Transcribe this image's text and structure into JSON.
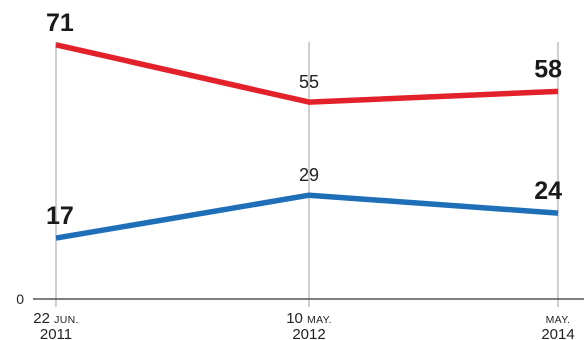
{
  "chart_data": {
    "type": "line",
    "categories": [
      {
        "day": "22",
        "month": "JUN.",
        "year": "2011"
      },
      {
        "day": "10",
        "month": "MAY.",
        "year": "2012"
      },
      {
        "day": "",
        "month": "MAY.",
        "year": "2014"
      }
    ],
    "series": [
      {
        "color": "#e3212b",
        "values": [
          71,
          55,
          58
        ],
        "label_bold": [
          true,
          false,
          true
        ]
      },
      {
        "color": "#1f6fb8",
        "values": [
          17,
          29,
          24
        ],
        "label_bold": [
          true,
          false,
          true
        ]
      }
    ],
    "yzero_label": "0",
    "ylim": [
      0,
      80
    ],
    "grid": "vertical lines at each date",
    "legend": "none"
  }
}
